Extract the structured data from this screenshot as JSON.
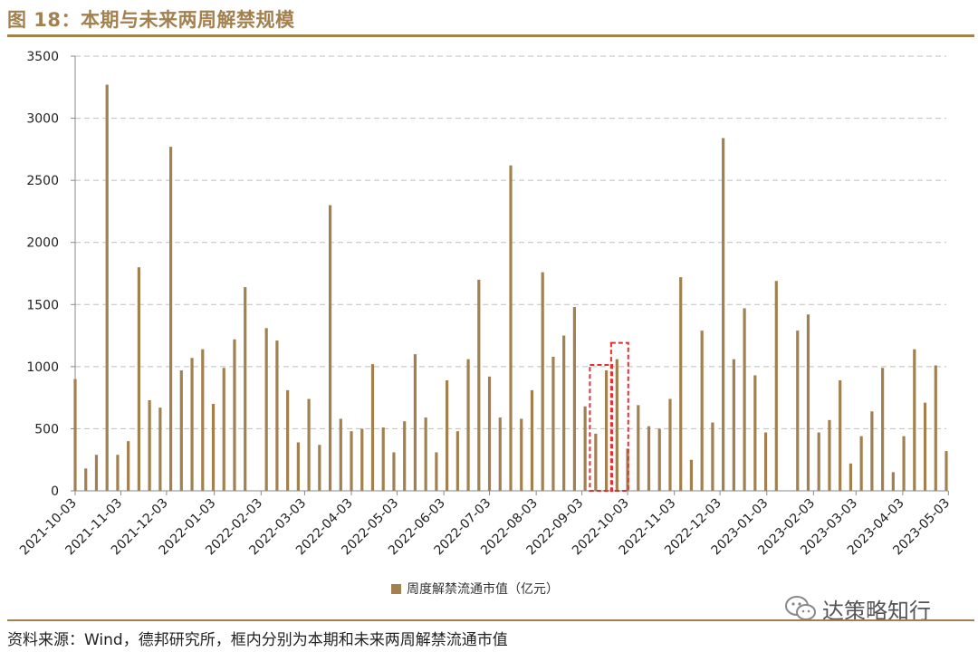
{
  "title": "图 18：本期与未来两周解禁规模",
  "source": "资料来源：Wind，德邦研究所，框内分别为本期和未来两周解禁流通市值",
  "watermark": "达策略知行",
  "colors": {
    "bar": "#A3814F",
    "accent": "#A3814F",
    "highlight": "#E03030",
    "grid": "#BFBFBF"
  },
  "chart_data": {
    "type": "bar",
    "legend_position": "bottom",
    "grid": true,
    "ylim": [
      0,
      3500
    ],
    "yticks": [
      0,
      500,
      1000,
      1500,
      2000,
      2500,
      3000,
      3500
    ],
    "xtick_labels": [
      "2021-10-03",
      "2021-11-03",
      "2021-12-03",
      "2022-01-03",
      "2022-02-03",
      "2022-03-03",
      "2022-04-03",
      "2022-05-03",
      "2022-06-03",
      "2022-07-03",
      "2022-08-03",
      "2022-09-03",
      "2022-10-03",
      "2022-11-03",
      "2022-12-03",
      "2023-01-03",
      "2023-02-03",
      "2023-03-03",
      "2023-04-03",
      "2023-05-03"
    ],
    "series": [
      {
        "name": "周度解禁流通市值（亿元）",
        "values": [
          900,
          180,
          290,
          3270,
          290,
          400,
          1800,
          730,
          670,
          2770,
          970,
          1070,
          1140,
          700,
          990,
          1220,
          1640,
          0,
          1310,
          1210,
          810,
          390,
          740,
          370,
          2300,
          580,
          480,
          500,
          1020,
          510,
          310,
          560,
          1100,
          590,
          310,
          890,
          480,
          1060,
          1700,
          920,
          590,
          2620,
          580,
          810,
          1760,
          1080,
          1250,
          1480,
          680,
          460,
          970,
          1060,
          340,
          690,
          520,
          500,
          740,
          1720,
          250,
          1290,
          550,
          2840,
          1060,
          1470,
          930,
          470,
          1690,
          0,
          1290,
          1420,
          470,
          570,
          890,
          220,
          440,
          640,
          990,
          150,
          440,
          1140,
          710,
          1010,
          320
        ]
      }
    ],
    "highlight_groups": [
      {
        "label": "本期",
        "start_index": 49,
        "end_index": 50
      },
      {
        "label": "未来两周",
        "start_index": 51,
        "end_index": 51
      }
    ]
  }
}
